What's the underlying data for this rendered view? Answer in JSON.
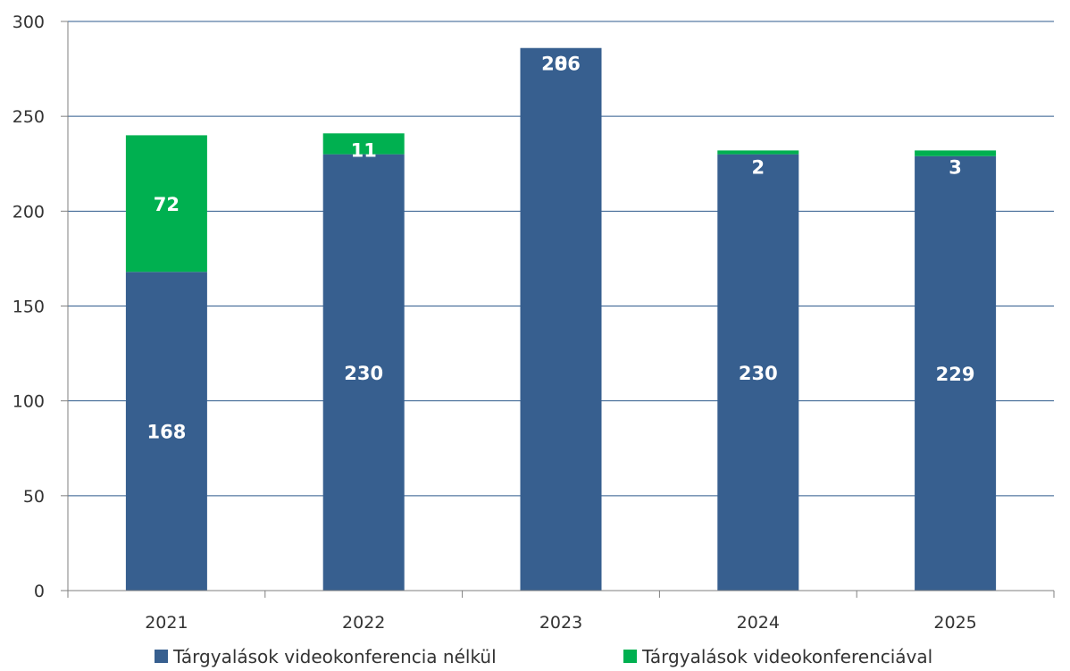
{
  "chart_data": {
    "type": "bar",
    "stacked": true,
    "categories": [
      "2021",
      "2022",
      "2023",
      "2024",
      "2025"
    ],
    "series": [
      {
        "name": "Tárgyalások videokonferencia nélkül",
        "values": [
          168,
          230,
          286,
          230,
          229
        ],
        "labels": [
          "168",
          "230",
          "286",
          "230",
          "229"
        ],
        "color": "#375f8f"
      },
      {
        "name": "Tárgyalások videokonferenciával",
        "values": [
          72,
          11,
          0,
          2,
          3
        ],
        "labels": [
          "72",
          "11",
          "0",
          "2",
          "3"
        ],
        "color": "#00b050"
      }
    ],
    "ylim": [
      0,
      300
    ],
    "yticks": [
      "0",
      "50",
      "100",
      "150",
      "200",
      "250",
      "300"
    ],
    "ytick_values": [
      0,
      50,
      100,
      150,
      200,
      250,
      300
    ],
    "grid": true,
    "legend_position": "bottom"
  }
}
